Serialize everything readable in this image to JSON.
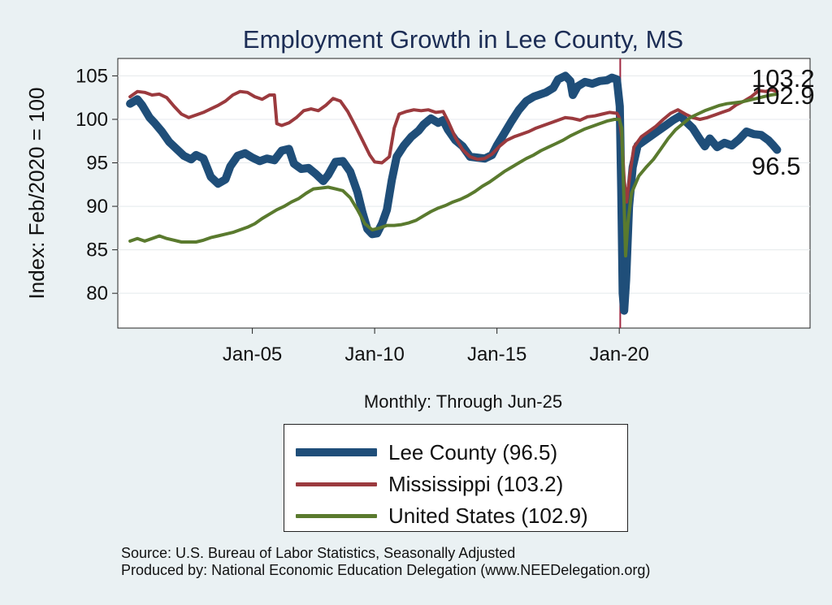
{
  "chart_data": {
    "type": "line",
    "title": "Employment Growth in Lee  County, MS",
    "xlabel": "Monthly: Through Jun-25",
    "ylabel": "Index: Feb/2020 = 100",
    "ylim": [
      76,
      107
    ],
    "yticks": [
      80,
      85,
      90,
      95,
      100,
      105
    ],
    "xlim": [
      1999.5,
      2027.8
    ],
    "xticks": [
      {
        "value": 2005.0,
        "label": "Jan-05"
      },
      {
        "value": 2010.0,
        "label": "Jan-10"
      },
      {
        "value": 2015.0,
        "label": "Jan-15"
      },
      {
        "value": 2020.0,
        "label": "Jan-20"
      }
    ],
    "reference_line_x": 2020.04,
    "series": [
      {
        "name": "Lee  County (96.5)",
        "color": "#1f4e79",
        "end_label": "96.5",
        "points": [
          [
            2000.0,
            101.8
          ],
          [
            2000.3,
            102.3
          ],
          [
            2000.5,
            101.6
          ],
          [
            2000.8,
            100.2
          ],
          [
            2001.0,
            99.6
          ],
          [
            2001.3,
            98.6
          ],
          [
            2001.6,
            97.4
          ],
          [
            2001.9,
            96.6
          ],
          [
            2002.2,
            95.8
          ],
          [
            2002.5,
            95.4
          ],
          [
            2002.7,
            95.9
          ],
          [
            2003.0,
            95.5
          ],
          [
            2003.3,
            93.4
          ],
          [
            2003.6,
            92.6
          ],
          [
            2003.9,
            93.1
          ],
          [
            2004.1,
            94.6
          ],
          [
            2004.4,
            95.8
          ],
          [
            2004.7,
            96.1
          ],
          [
            2005.0,
            95.6
          ],
          [
            2005.3,
            95.2
          ],
          [
            2005.6,
            95.5
          ],
          [
            2005.9,
            95.3
          ],
          [
            2006.2,
            96.4
          ],
          [
            2006.5,
            96.6
          ],
          [
            2006.7,
            94.9
          ],
          [
            2007.0,
            94.3
          ],
          [
            2007.3,
            94.4
          ],
          [
            2007.6,
            93.7
          ],
          [
            2007.9,
            92.9
          ],
          [
            2008.1,
            93.6
          ],
          [
            2008.4,
            95.1
          ],
          [
            2008.7,
            95.2
          ],
          [
            2009.0,
            94.0
          ],
          [
            2009.3,
            91.6
          ],
          [
            2009.5,
            89.3
          ],
          [
            2009.7,
            87.4
          ],
          [
            2009.9,
            86.8
          ],
          [
            2010.1,
            86.9
          ],
          [
            2010.3,
            88.0
          ],
          [
            2010.5,
            89.6
          ],
          [
            2010.7,
            93.0
          ],
          [
            2010.9,
            95.7
          ],
          [
            2011.2,
            97.0
          ],
          [
            2011.5,
            98.0
          ],
          [
            2011.8,
            98.7
          ],
          [
            2012.0,
            99.4
          ],
          [
            2012.3,
            100.1
          ],
          [
            2012.6,
            99.6
          ],
          [
            2012.8,
            99.9
          ],
          [
            2013.0,
            98.8
          ],
          [
            2013.3,
            97.6
          ],
          [
            2013.6,
            96.9
          ],
          [
            2013.9,
            95.7
          ],
          [
            2014.2,
            95.6
          ],
          [
            2014.5,
            95.5
          ],
          [
            2014.8,
            95.9
          ],
          [
            2015.0,
            97.0
          ],
          [
            2015.3,
            98.4
          ],
          [
            2015.6,
            99.8
          ],
          [
            2015.9,
            101.1
          ],
          [
            2016.2,
            102.1
          ],
          [
            2016.5,
            102.6
          ],
          [
            2016.8,
            102.9
          ],
          [
            2017.0,
            103.1
          ],
          [
            2017.3,
            103.6
          ],
          [
            2017.5,
            104.6
          ],
          [
            2017.8,
            105.0
          ],
          [
            2018.0,
            104.4
          ],
          [
            2018.1,
            102.8
          ],
          [
            2018.3,
            103.8
          ],
          [
            2018.6,
            104.3
          ],
          [
            2018.9,
            104.1
          ],
          [
            2019.2,
            104.4
          ],
          [
            2019.5,
            104.5
          ],
          [
            2019.7,
            104.8
          ],
          [
            2019.9,
            104.6
          ],
          [
            2020.02,
            101.5
          ],
          [
            2020.08,
            92.0
          ],
          [
            2020.14,
            80.0
          ],
          [
            2020.2,
            78.0
          ],
          [
            2020.28,
            81.5
          ],
          [
            2020.4,
            90.0
          ],
          [
            2020.55,
            94.5
          ],
          [
            2020.75,
            97.0
          ],
          [
            2021.0,
            97.5
          ],
          [
            2021.3,
            98.1
          ],
          [
            2021.6,
            98.7
          ],
          [
            2021.9,
            99.3
          ],
          [
            2022.2,
            99.9
          ],
          [
            2022.5,
            100.4
          ],
          [
            2022.7,
            99.8
          ],
          [
            2023.0,
            99.0
          ],
          [
            2023.3,
            97.7
          ],
          [
            2023.5,
            96.9
          ],
          [
            2023.7,
            97.8
          ],
          [
            2024.0,
            96.8
          ],
          [
            2024.3,
            97.3
          ],
          [
            2024.6,
            97.0
          ],
          [
            2024.9,
            97.7
          ],
          [
            2025.2,
            98.6
          ],
          [
            2025.5,
            98.3
          ],
          [
            2025.8,
            98.2
          ],
          [
            2026.1,
            97.6
          ],
          [
            2026.3,
            97.0
          ],
          [
            2026.45,
            96.5
          ]
        ]
      },
      {
        "name": "Mississippi (103.2)",
        "color": "#9b3a3e",
        "end_label": "103.2",
        "points": [
          [
            2000.0,
            102.6
          ],
          [
            2000.3,
            103.2
          ],
          [
            2000.6,
            103.1
          ],
          [
            2000.9,
            102.8
          ],
          [
            2001.2,
            102.9
          ],
          [
            2001.5,
            102.5
          ],
          [
            2001.8,
            101.5
          ],
          [
            2002.1,
            100.6
          ],
          [
            2002.4,
            100.2
          ],
          [
            2002.7,
            100.5
          ],
          [
            2003.0,
            100.8
          ],
          [
            2003.3,
            101.2
          ],
          [
            2003.6,
            101.6
          ],
          [
            2003.9,
            102.1
          ],
          [
            2004.2,
            102.8
          ],
          [
            2004.5,
            103.2
          ],
          [
            2004.8,
            103.1
          ],
          [
            2005.1,
            102.6
          ],
          [
            2005.4,
            102.3
          ],
          [
            2005.7,
            102.8
          ],
          [
            2005.9,
            102.8
          ],
          [
            2006.0,
            99.5
          ],
          [
            2006.2,
            99.3
          ],
          [
            2006.5,
            99.6
          ],
          [
            2006.8,
            100.2
          ],
          [
            2007.1,
            101.0
          ],
          [
            2007.4,
            101.2
          ],
          [
            2007.7,
            101.0
          ],
          [
            2008.0,
            101.6
          ],
          [
            2008.3,
            102.4
          ],
          [
            2008.6,
            102.1
          ],
          [
            2008.9,
            100.9
          ],
          [
            2009.2,
            99.3
          ],
          [
            2009.5,
            97.6
          ],
          [
            2009.8,
            95.9
          ],
          [
            2010.0,
            95.1
          ],
          [
            2010.3,
            95.0
          ],
          [
            2010.6,
            95.7
          ],
          [
            2010.8,
            99.0
          ],
          [
            2011.0,
            100.6
          ],
          [
            2011.3,
            100.9
          ],
          [
            2011.6,
            101.1
          ],
          [
            2011.9,
            101.0
          ],
          [
            2012.2,
            101.1
          ],
          [
            2012.5,
            100.8
          ],
          [
            2012.8,
            100.9
          ],
          [
            2013.0,
            99.8
          ],
          [
            2013.3,
            97.9
          ],
          [
            2013.6,
            96.5
          ],
          [
            2013.9,
            95.7
          ],
          [
            2014.2,
            95.4
          ],
          [
            2014.5,
            95.5
          ],
          [
            2014.8,
            96.0
          ],
          [
            2015.1,
            96.9
          ],
          [
            2015.4,
            97.6
          ],
          [
            2015.7,
            98.0
          ],
          [
            2016.0,
            98.3
          ],
          [
            2016.3,
            98.6
          ],
          [
            2016.6,
            99.0
          ],
          [
            2016.9,
            99.3
          ],
          [
            2017.2,
            99.6
          ],
          [
            2017.5,
            99.9
          ],
          [
            2017.8,
            100.2
          ],
          [
            2018.1,
            100.1
          ],
          [
            2018.4,
            99.9
          ],
          [
            2018.7,
            100.3
          ],
          [
            2019.0,
            100.4
          ],
          [
            2019.3,
            100.6
          ],
          [
            2019.6,
            100.8
          ],
          [
            2019.9,
            100.7
          ],
          [
            2020.0,
            100.2
          ],
          [
            2020.1,
            98.0
          ],
          [
            2020.2,
            93.0
          ],
          [
            2020.3,
            90.5
          ],
          [
            2020.45,
            94.0
          ],
          [
            2020.6,
            96.8
          ],
          [
            2020.9,
            98.0
          ],
          [
            2021.2,
            98.6
          ],
          [
            2021.5,
            99.2
          ],
          [
            2021.8,
            100.0
          ],
          [
            2022.1,
            100.7
          ],
          [
            2022.4,
            101.1
          ],
          [
            2022.7,
            100.6
          ],
          [
            2023.0,
            100.2
          ],
          [
            2023.3,
            100.0
          ],
          [
            2023.6,
            100.2
          ],
          [
            2023.9,
            100.5
          ],
          [
            2024.2,
            100.8
          ],
          [
            2024.5,
            101.1
          ],
          [
            2024.8,
            101.7
          ],
          [
            2025.1,
            102.1
          ],
          [
            2025.4,
            102.6
          ],
          [
            2025.7,
            103.3
          ],
          [
            2026.0,
            103.2
          ],
          [
            2026.2,
            103.4
          ],
          [
            2026.45,
            103.2
          ]
        ]
      },
      {
        "name": "United States (102.9)",
        "color": "#5a7a2e",
        "end_label": "102.9",
        "points": [
          [
            2000.0,
            86.0
          ],
          [
            2000.3,
            86.3
          ],
          [
            2000.6,
            86.0
          ],
          [
            2000.9,
            86.3
          ],
          [
            2001.2,
            86.6
          ],
          [
            2001.5,
            86.3
          ],
          [
            2001.8,
            86.1
          ],
          [
            2002.1,
            85.9
          ],
          [
            2002.4,
            85.9
          ],
          [
            2002.7,
            85.9
          ],
          [
            2003.0,
            86.1
          ],
          [
            2003.3,
            86.4
          ],
          [
            2003.6,
            86.6
          ],
          [
            2003.9,
            86.8
          ],
          [
            2004.2,
            87.0
          ],
          [
            2004.5,
            87.3
          ],
          [
            2004.8,
            87.6
          ],
          [
            2005.1,
            88.0
          ],
          [
            2005.4,
            88.6
          ],
          [
            2005.7,
            89.1
          ],
          [
            2006.0,
            89.6
          ],
          [
            2006.3,
            90.0
          ],
          [
            2006.6,
            90.5
          ],
          [
            2006.9,
            90.9
          ],
          [
            2007.2,
            91.5
          ],
          [
            2007.5,
            92.0
          ],
          [
            2007.8,
            92.1
          ],
          [
            2008.1,
            92.2
          ],
          [
            2008.4,
            92.0
          ],
          [
            2008.7,
            91.8
          ],
          [
            2009.0,
            91.0
          ],
          [
            2009.3,
            89.6
          ],
          [
            2009.6,
            88.0
          ],
          [
            2009.9,
            87.3
          ],
          [
            2010.2,
            87.5
          ],
          [
            2010.5,
            87.8
          ],
          [
            2010.8,
            87.8
          ],
          [
            2011.1,
            87.9
          ],
          [
            2011.4,
            88.1
          ],
          [
            2011.7,
            88.4
          ],
          [
            2012.0,
            88.9
          ],
          [
            2012.3,
            89.4
          ],
          [
            2012.6,
            89.8
          ],
          [
            2012.9,
            90.1
          ],
          [
            2013.2,
            90.5
          ],
          [
            2013.5,
            90.8
          ],
          [
            2013.8,
            91.2
          ],
          [
            2014.1,
            91.7
          ],
          [
            2014.4,
            92.3
          ],
          [
            2014.7,
            92.8
          ],
          [
            2015.0,
            93.4
          ],
          [
            2015.3,
            94.0
          ],
          [
            2015.6,
            94.5
          ],
          [
            2015.9,
            95.0
          ],
          [
            2016.2,
            95.5
          ],
          [
            2016.5,
            95.9
          ],
          [
            2016.8,
            96.4
          ],
          [
            2017.1,
            96.8
          ],
          [
            2017.4,
            97.2
          ],
          [
            2017.7,
            97.6
          ],
          [
            2018.0,
            98.1
          ],
          [
            2018.3,
            98.5
          ],
          [
            2018.6,
            98.9
          ],
          [
            2018.9,
            99.2
          ],
          [
            2019.2,
            99.5
          ],
          [
            2019.5,
            99.8
          ],
          [
            2019.8,
            100.0
          ],
          [
            2020.0,
            100.0
          ],
          [
            2020.1,
            99.0
          ],
          [
            2020.2,
            90.0
          ],
          [
            2020.26,
            84.3
          ],
          [
            2020.35,
            88.0
          ],
          [
            2020.5,
            91.5
          ],
          [
            2020.8,
            93.5
          ],
          [
            2021.1,
            94.5
          ],
          [
            2021.4,
            95.4
          ],
          [
            2021.7,
            96.6
          ],
          [
            2022.0,
            97.8
          ],
          [
            2022.3,
            98.8
          ],
          [
            2022.6,
            99.5
          ],
          [
            2022.9,
            100.2
          ],
          [
            2023.2,
            100.6
          ],
          [
            2023.5,
            101.0
          ],
          [
            2023.8,
            101.3
          ],
          [
            2024.1,
            101.6
          ],
          [
            2024.4,
            101.8
          ],
          [
            2024.7,
            101.9
          ],
          [
            2025.0,
            102.0
          ],
          [
            2025.3,
            102.2
          ],
          [
            2025.6,
            102.4
          ],
          [
            2025.9,
            102.6
          ],
          [
            2026.2,
            102.8
          ],
          [
            2026.45,
            102.9
          ]
        ]
      }
    ],
    "legend": {
      "position": "bottom-center",
      "entries": [
        "Lee  County (96.5)",
        "Mississippi (103.2)",
        "United States (102.9)"
      ]
    }
  },
  "notes": {
    "source": "Source: U.S. Bureau of Labor Statistics, Seasonally Adjusted",
    "produced_by": "Produced by: National Economic Education Delegation (www.NEEDelegation.org)"
  }
}
